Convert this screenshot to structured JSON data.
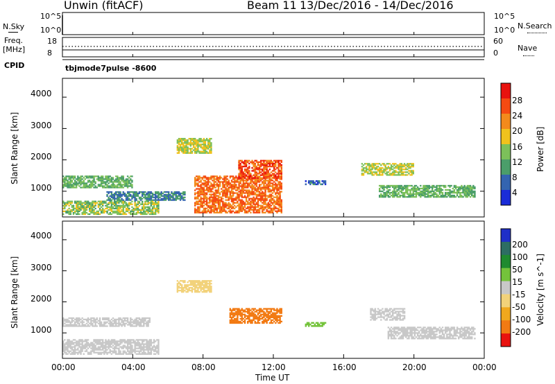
{
  "header": {
    "radar": "Unwin (fitACF)",
    "beam": "Beam 11",
    "date_range": "13/Dec/2016 - 14/Dec/2016"
  },
  "nsky_panel": {
    "left_label": "N.Sky",
    "left_ticks": [
      "10^5",
      "10^0"
    ],
    "right_ticks": [
      "10^5",
      "10^0"
    ],
    "right_label": "N.Search"
  },
  "freq_panel": {
    "left_label_line1": "Freq.",
    "left_label_line2": "[MHz]",
    "left_ticks": [
      "18",
      "8"
    ],
    "right_ticks": [
      "60",
      "0"
    ],
    "right_label": "Nave",
    "cpid_label": "CPID",
    "cpid_value": "tbjmode7pulse  -8600"
  },
  "power_panel": {
    "ylabel": "Slant Range [km]",
    "yticks": [
      "4000",
      "3000",
      "2000",
      "1000"
    ],
    "colorbar_label": "Power [dB]",
    "colorbar_ticks": [
      "28",
      "24",
      "20",
      "16",
      "12",
      "8",
      "4"
    ],
    "colorbar_colors": [
      "#e8120f",
      "#f54a12",
      "#f38a1c",
      "#f0c21d",
      "#7cc05a",
      "#4b9e6a",
      "#3464b0",
      "#1a2cd8"
    ]
  },
  "velocity_panel": {
    "ylabel": "Slant Range [km]",
    "yticks": [
      "4000",
      "3000",
      "2000",
      "1000"
    ],
    "colorbar_label": "Velocity [m s^-1]",
    "colorbar_ticks": [
      "200",
      "100",
      "50",
      "15",
      "-15",
      "-50",
      "-100",
      "-200"
    ],
    "colorbar_colors": [
      "#1f2fc8",
      "#2d6d63",
      "#1f8a2f",
      "#74c33b",
      "#c8c8c8",
      "#f2d27a",
      "#f0a81e",
      "#f27a13",
      "#e8120f"
    ]
  },
  "x_axis": {
    "label": "Time UT",
    "ticks": [
      "00:00",
      "04:00",
      "08:00",
      "12:00",
      "16:00",
      "20:00",
      "00:00"
    ]
  },
  "chart_data": {
    "type": "heatmap",
    "x_range_hours": [
      0,
      24
    ],
    "y_range_km": [
      180,
      4600
    ],
    "grid": false,
    "power_regions": [
      {
        "t0": 0.0,
        "t1": 4.0,
        "r0": 1100,
        "r1": 1500,
        "level": 12
      },
      {
        "t0": 0.0,
        "t1": 5.5,
        "r0": 250,
        "r1": 700,
        "level": 14
      },
      {
        "t0": 2.5,
        "t1": 7.0,
        "r0": 700,
        "r1": 1000,
        "level": 8
      },
      {
        "t0": 6.5,
        "t1": 8.5,
        "r0": 2200,
        "r1": 2700,
        "level": 16
      },
      {
        "t0": 7.5,
        "t1": 12.5,
        "r0": 300,
        "r1": 1500,
        "level": 24
      },
      {
        "t0": 10.0,
        "t1": 12.5,
        "r0": 1400,
        "r1": 2000,
        "level": 26
      },
      {
        "t0": 13.8,
        "t1": 15.0,
        "r0": 1200,
        "r1": 1350,
        "level": 6
      },
      {
        "t0": 17.0,
        "t1": 20.0,
        "r0": 1500,
        "r1": 1900,
        "level": 16
      },
      {
        "t0": 18.0,
        "t1": 23.5,
        "r0": 800,
        "r1": 1200,
        "level": 12
      }
    ],
    "velocity_regions": [
      {
        "t0": 0.0,
        "t1": 5.0,
        "r0": 1200,
        "r1": 1500,
        "level": -5
      },
      {
        "t0": 0.0,
        "t1": 5.5,
        "r0": 300,
        "r1": 800,
        "level": -5
      },
      {
        "t0": 6.5,
        "t1": 8.5,
        "r0": 2300,
        "r1": 2700,
        "level": -30
      },
      {
        "t0": 9.5,
        "t1": 12.5,
        "r0": 1300,
        "r1": 1800,
        "level": -120
      },
      {
        "t0": 13.8,
        "t1": 15.0,
        "r0": 1200,
        "r1": 1350,
        "level": 40
      },
      {
        "t0": 17.5,
        "t1": 19.5,
        "r0": 1400,
        "r1": 1800,
        "level": -5
      },
      {
        "t0": 18.5,
        "t1": 23.5,
        "r0": 800,
        "r1": 1200,
        "level": -5
      }
    ]
  }
}
